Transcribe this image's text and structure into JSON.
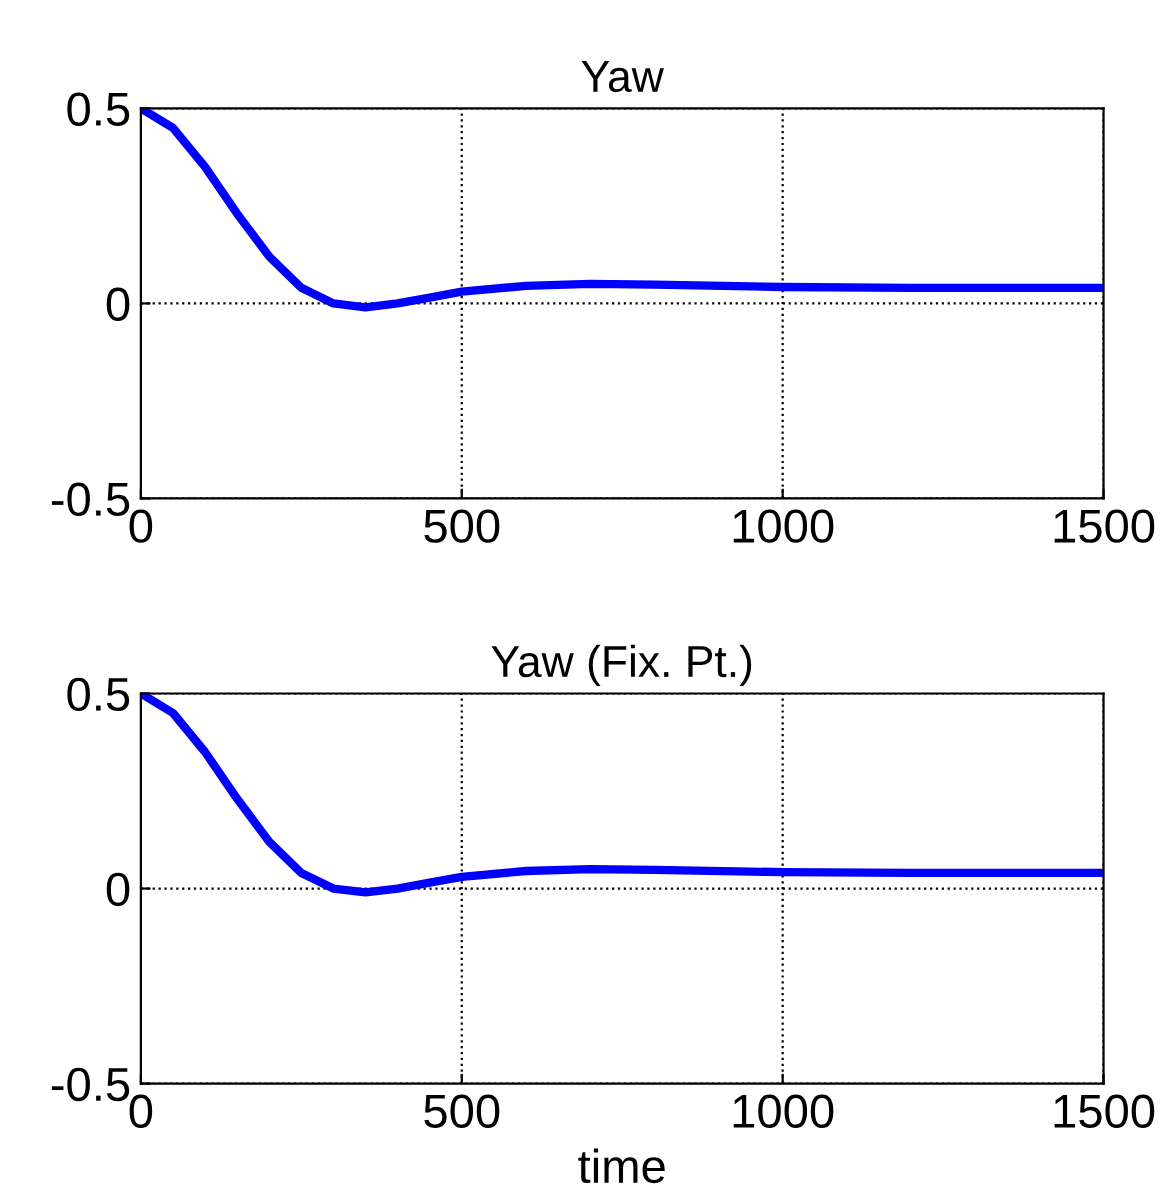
{
  "chart_data": [
    {
      "type": "line",
      "title": "Yaw",
      "x": [
        0,
        50,
        100,
        150,
        200,
        250,
        300,
        350,
        400,
        450,
        500,
        600,
        700,
        800,
        1000,
        1200,
        1500
      ],
      "series": [
        {
          "color": "#0000ff",
          "values": [
            0.5,
            0.45,
            0.35,
            0.23,
            0.12,
            0.04,
            0.0,
            -0.01,
            0.0,
            0.015,
            0.03,
            0.045,
            0.05,
            0.048,
            0.042,
            0.04,
            0.04
          ]
        }
      ],
      "xlim": [
        0,
        1500
      ],
      "ylim": [
        -0.5,
        0.5
      ],
      "xticks": [
        0,
        500,
        1000,
        1500
      ],
      "yticks": [
        -0.5,
        0,
        0.5
      ],
      "grid": true
    },
    {
      "type": "line",
      "title": "Yaw (Fix. Pt.)",
      "xlabel": "time",
      "x": [
        0,
        50,
        100,
        150,
        200,
        250,
        300,
        350,
        400,
        450,
        500,
        600,
        700,
        800,
        1000,
        1200,
        1500
      ],
      "series": [
        {
          "color": "#0000ff",
          "values": [
            0.5,
            0.45,
            0.35,
            0.23,
            0.12,
            0.04,
            0.0,
            -0.01,
            0.0,
            0.015,
            0.03,
            0.045,
            0.05,
            0.048,
            0.042,
            0.04,
            0.04
          ]
        }
      ],
      "xlim": [
        0,
        1500
      ],
      "ylim": [
        -0.5,
        0.5
      ],
      "xticks": [
        0,
        500,
        1000,
        1500
      ],
      "yticks": [
        -0.5,
        0,
        0.5
      ],
      "grid": true
    }
  ]
}
